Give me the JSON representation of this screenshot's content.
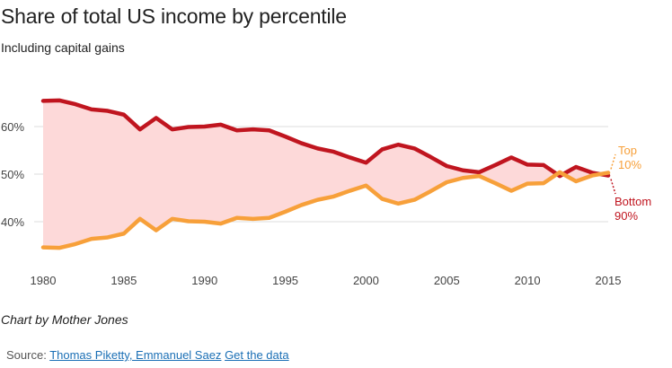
{
  "header": {
    "title": "Share of total US income by percentile",
    "subtitle": "Including capital gains"
  },
  "footer": {
    "credit": "Chart by Mother Jones",
    "source_prefix": "Source:",
    "source_link": "Thomas Piketty, Emmanuel Saez",
    "data_link": "Get the data"
  },
  "colors": {
    "bottom90": "#c0151f",
    "top10": "#f7a03a",
    "fill": "#fdd9d9",
    "grid": "#dddddd"
  },
  "chart_data": {
    "type": "line",
    "x": [
      1980,
      1981,
      1982,
      1983,
      1984,
      1985,
      1986,
      1987,
      1988,
      1989,
      1990,
      1991,
      1992,
      1993,
      1994,
      1995,
      1996,
      1997,
      1998,
      1999,
      2000,
      2001,
      2002,
      2003,
      2004,
      2005,
      2006,
      2007,
      2008,
      2009,
      2010,
      2011,
      2012,
      2013,
      2014,
      2015
    ],
    "series": [
      {
        "name": "Bottom 90%",
        "label_lines": [
          "Bottom",
          "90%"
        ],
        "color": "#c0151f",
        "values": [
          65.4,
          65.5,
          64.7,
          63.6,
          63.3,
          62.5,
          59.4,
          61.8,
          59.4,
          59.9,
          60.0,
          60.4,
          59.2,
          59.4,
          59.2,
          57.9,
          56.5,
          55.4,
          54.7,
          53.5,
          52.4,
          55.2,
          56.2,
          55.4,
          53.6,
          51.7,
          50.8,
          50.4,
          51.9,
          53.5,
          52.0,
          51.9,
          49.6,
          51.5,
          50.3,
          49.7
        ]
      },
      {
        "name": "Top 10%",
        "label_lines": [
          "Top",
          "10%"
        ],
        "color": "#f7a03a",
        "values": [
          34.6,
          34.5,
          35.3,
          36.4,
          36.7,
          37.5,
          40.6,
          38.2,
          40.6,
          40.1,
          40.0,
          39.6,
          40.8,
          40.6,
          40.8,
          42.1,
          43.5,
          44.6,
          45.3,
          46.5,
          47.6,
          44.8,
          43.8,
          44.6,
          46.4,
          48.3,
          49.2,
          49.6,
          48.1,
          46.5,
          48.0,
          48.1,
          50.4,
          48.5,
          49.7,
          50.3
        ]
      }
    ],
    "xlim": [
      1980,
      2015
    ],
    "ylim": [
      30,
      70
    ],
    "xticks": [
      1980,
      1985,
      1990,
      1995,
      2000,
      2005,
      2010,
      2015
    ],
    "yticks": [
      40,
      50,
      60
    ],
    "xtick_labels": [
      "1980",
      "1985",
      "1990",
      "1995",
      "2000",
      "2005",
      "2010",
      "2015"
    ],
    "ytick_labels": [
      "40%",
      "50%",
      "60%"
    ],
    "grid": true,
    "fill_between": true
  }
}
